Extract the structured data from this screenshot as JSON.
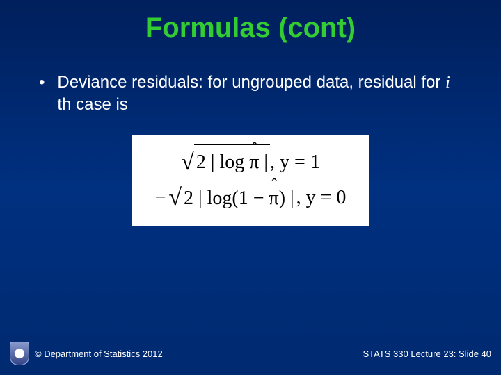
{
  "title": "Formulas (cont)",
  "bullet": {
    "text_before_i": "Deviance residuals: for ungrouped data, residual for ",
    "i": "i",
    "text_after_i": " th case is"
  },
  "formula": {
    "row1": {
      "neg": "",
      "arg": "2 | log ",
      "pihat": "π",
      "close": " |",
      "tail": ", y = 1"
    },
    "row2": {
      "neg": "−",
      "arg": "2 | log(1 − ",
      "pihat": "π",
      "close": ") |",
      "tail": ", y = 0"
    }
  },
  "footer": {
    "copyright": "© Department of Statistics 2012",
    "slide": "STATS 330 Lecture 23: Slide 40"
  },
  "colors": {
    "title": "#33cc33",
    "bg_top": "#001f5c",
    "bg_bot": "#002a70",
    "text": "#ffffff",
    "formula_bg": "#ffffff",
    "formula_text": "#000000"
  }
}
